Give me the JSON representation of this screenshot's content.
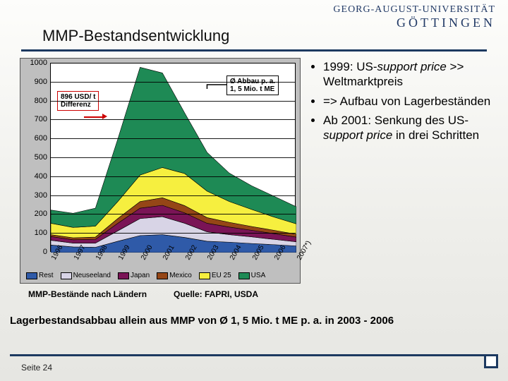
{
  "header": {
    "uni": "GEORG-AUGUST-UNIVERSITÄT",
    "city": "GÖTTINGEN"
  },
  "title": "MMP-Bestandsentwicklung",
  "chart": {
    "type": "stacked-area",
    "background": "#bfbfbf",
    "plot_background": "#ffffff",
    "ylim": [
      0,
      1000
    ],
    "ytick_step": 100,
    "yticks": [
      "0",
      "100",
      "200",
      "300",
      "400",
      "500",
      "600",
      "700",
      "800",
      "900",
      "1000"
    ],
    "xticks": [
      "1996",
      "1997",
      "1998",
      "1999",
      "2000",
      "2001",
      "2002",
      "2003",
      "2004",
      "2005",
      "2006",
      "2007*)"
    ],
    "series": [
      {
        "name": "Rest",
        "color": "#2f5aa8",
        "values": [
          40,
          30,
          28,
          60,
          90,
          95,
          80,
          60,
          55,
          48,
          42,
          35
        ]
      },
      {
        "name": "Neuseeland",
        "color": "#d8d4e6",
        "values": [
          25,
          20,
          22,
          55,
          90,
          95,
          75,
          50,
          40,
          35,
          28,
          22
        ]
      },
      {
        "name": "Japan",
        "color": "#7a1456",
        "values": [
          20,
          18,
          20,
          40,
          55,
          60,
          55,
          45,
          40,
          35,
          30,
          25
        ]
      },
      {
        "name": "Mexico",
        "color": "#954616",
        "values": [
          10,
          10,
          12,
          25,
          35,
          40,
          38,
          30,
          25,
          20,
          18,
          15
        ]
      },
      {
        "name": "EU 25",
        "color": "#f6ef3f",
        "values": [
          60,
          55,
          58,
          90,
          140,
          160,
          170,
          140,
          110,
          90,
          70,
          55
        ]
      },
      {
        "name": "USA",
        "color": "#1e8a55",
        "values": [
          70,
          75,
          95,
          330,
          570,
          500,
          320,
          205,
          150,
          125,
          110,
          90
        ]
      }
    ],
    "annotations": {
      "left": {
        "text_l1": "896 USD/ t",
        "text_l2": "Differenz"
      },
      "right": {
        "text_l1": "Ø Abbau p. a.",
        "text_l2": "1, 5 Mio. t ME"
      }
    },
    "grid_color": "#000000",
    "label_fontsize": 11
  },
  "bullets": [
    "1999: US-<em>support price</em> >> Weltmarktpreis",
    "=> Aufbau von Lagerbeständen",
    "Ab 2001: Senkung des US-<em>support price</em> in drei Schritten"
  ],
  "caption": "MMP-Bestände nach Ländern",
  "source": "Quelle: FAPRI, USDA",
  "bottom": "Lagerbestandsabbau allein aus MMP von Ø 1, 5 Mio. t ME p. a. in 2003 - 2006",
  "page_num": "Seite 24"
}
